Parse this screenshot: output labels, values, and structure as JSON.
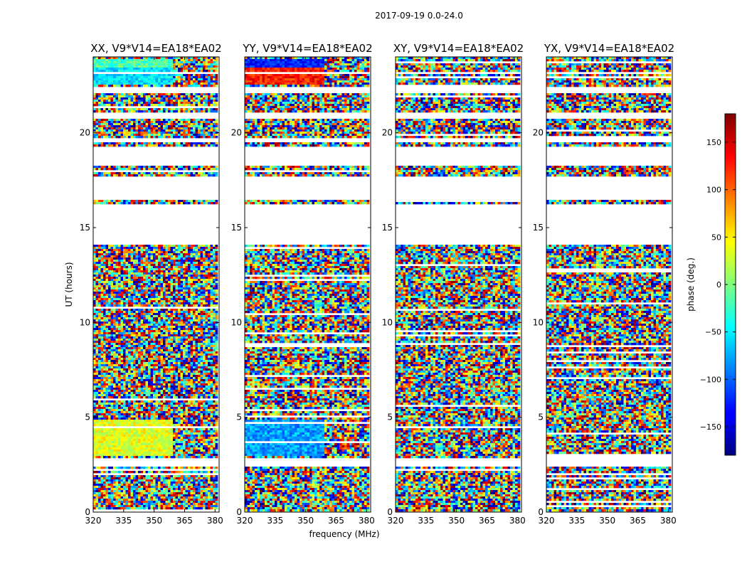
{
  "figure": {
    "suptitle": "2017-09-19 0.0-24.0",
    "ylabel": "UT (hours)",
    "xlabel": "frequency (MHz)"
  },
  "chart_data": [
    {
      "type": "heatmap",
      "title": "XX, V9*V14=EA18*EA02",
      "xlim": [
        320,
        382
      ],
      "ylim": [
        0,
        24
      ],
      "xticks": [
        320,
        335,
        350,
        365,
        380
      ],
      "yticks": [
        0,
        5,
        10,
        15,
        20
      ],
      "grid": false
    },
    {
      "type": "heatmap",
      "title": "YY, V9*V14=EA18*EA02",
      "xlim": [
        320,
        382
      ],
      "ylim": [
        0,
        24
      ],
      "xticks": [
        320,
        335,
        350,
        365,
        380
      ],
      "yticks": [
        0,
        5,
        10,
        15,
        20
      ],
      "grid": false
    },
    {
      "type": "heatmap",
      "title": "XY, V9*V14=EA18*EA02",
      "xlim": [
        320,
        382
      ],
      "ylim": [
        0,
        24
      ],
      "xticks": [
        320,
        335,
        350,
        365,
        380
      ],
      "yticks": [
        0,
        5,
        10,
        15,
        20
      ],
      "grid": false
    },
    {
      "type": "heatmap",
      "title": "YX, V9*V14=EA18*EA02",
      "xlim": [
        320,
        382
      ],
      "ylim": [
        0,
        24
      ],
      "xticks": [
        320,
        335,
        350,
        365,
        380
      ],
      "yticks": [
        0,
        5,
        10,
        15,
        20
      ],
      "grid": false
    }
  ],
  "colorbar": {
    "label": "phase (deg.)",
    "range": [
      -180,
      180
    ],
    "ticks": [
      -150,
      -100,
      -50,
      0,
      50,
      100,
      150
    ],
    "colormap": "jet"
  }
}
